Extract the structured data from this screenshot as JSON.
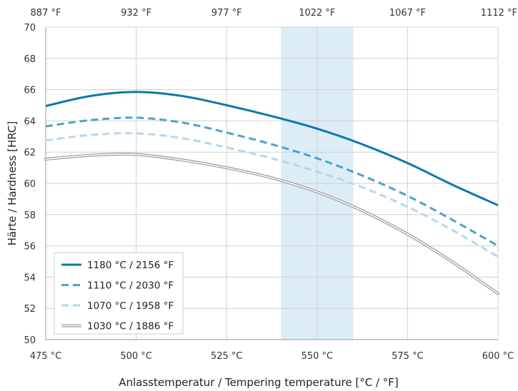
{
  "chart_data": {
    "type": "line",
    "xlabel": "Anlasstemperatur / Tempering temperature [°C / °F]",
    "ylabel": "Härte / Hardness [HRC]",
    "xlim": [
      475,
      600
    ],
    "ylim": [
      50,
      70
    ],
    "x_ticks": [
      475,
      500,
      525,
      550,
      575,
      600
    ],
    "x_tick_labels": [
      "475 °C",
      "500 °C",
      "525 °C",
      "550 °C",
      "575 °C",
      "600 °C"
    ],
    "x_top_ticks": [
      475,
      500,
      525,
      550,
      575,
      600
    ],
    "x_top_tick_labels": [
      "887 °F",
      "932 °F",
      "977 °F",
      "1022 °F",
      "1067 °F",
      "1112 °F"
    ],
    "y_ticks": [
      50,
      52,
      54,
      56,
      58,
      60,
      62,
      64,
      66,
      68,
      70
    ],
    "y_tick_labels": [
      "50",
      "52",
      "54",
      "56",
      "58",
      "60",
      "62",
      "64",
      "66",
      "68",
      "70"
    ],
    "grid": true,
    "highlight_band": {
      "x_start": 540,
      "x_end": 560,
      "color": "#dcedf6"
    },
    "legend_position": "bottom-left",
    "series": [
      {
        "name": "1180 °C / 2156 °F",
        "color": "#0a7aab",
        "style": "solid",
        "x": [
          475,
          487.5,
          500,
          512.5,
          525,
          537.5,
          550,
          562.5,
          575,
          587.5,
          600
        ],
        "y": [
          64.95,
          65.6,
          65.85,
          65.6,
          65.0,
          64.3,
          63.5,
          62.5,
          61.3,
          59.9,
          58.6
        ]
      },
      {
        "name": "1110 °C / 2030 °F",
        "color": "#4aa3c9",
        "style": "dashed",
        "x": [
          475,
          487.5,
          500,
          512.5,
          525,
          537.5,
          550,
          562.5,
          575,
          587.5,
          600
        ],
        "y": [
          63.65,
          64.05,
          64.2,
          63.9,
          63.25,
          62.5,
          61.6,
          60.5,
          59.2,
          57.65,
          56.0
        ]
      },
      {
        "name": "1070 °C / 1958 °F",
        "color": "#b5d8ea",
        "style": "dashed",
        "x": [
          475,
          487.5,
          500,
          512.5,
          525,
          537.5,
          550,
          562.5,
          575,
          587.5,
          600
        ],
        "y": [
          62.75,
          63.1,
          63.2,
          62.9,
          62.3,
          61.6,
          60.75,
          59.75,
          58.5,
          57.0,
          55.3
        ]
      },
      {
        "name": "1030 °C / 1886 °F",
        "color": "#9a9a9a",
        "style": "double",
        "x": [
          475,
          487.5,
          500,
          512.5,
          525,
          537.5,
          550,
          562.5,
          575,
          587.5,
          600
        ],
        "y": [
          61.55,
          61.8,
          61.85,
          61.5,
          61.0,
          60.35,
          59.45,
          58.25,
          56.75,
          54.95,
          52.95
        ]
      }
    ]
  }
}
